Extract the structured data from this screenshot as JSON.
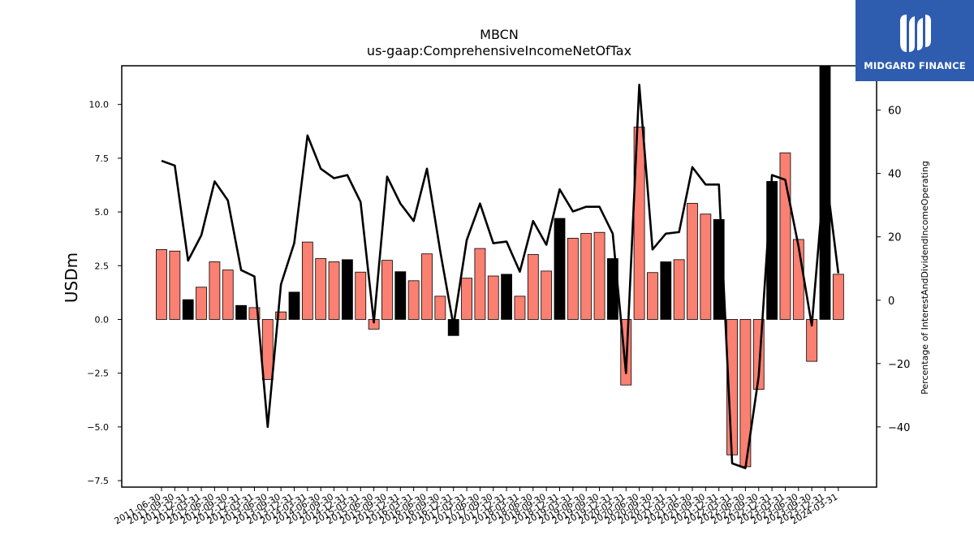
{
  "chart_data": {
    "type": "bar",
    "title": "MBCN",
    "subtitle": "us-gaap:ComprehensiveIncomeNetOfTax",
    "ylabel": "USDm",
    "ylabel_right": "Percentage of InterestAndDividendIncomeOperating",
    "ylim": [
      -7.8,
      11.8
    ],
    "ylim_right": [
      -59,
      74
    ],
    "yticks": [
      "−7.5",
      "−5.0",
      "−2.5",
      "0.0",
      "2.5",
      "5.0",
      "7.5",
      "10.0"
    ],
    "yticks_right": [
      "−40",
      "−20",
      "0",
      "20",
      "40",
      "60"
    ],
    "categories": [
      "2011-06-30",
      "2011-09-30",
      "2011-12-31",
      "2012-03-31",
      "2012-06-30",
      "2012-09-30",
      "2012-12-31",
      "2013-03-31",
      "2013-06-30",
      "2013-09-30",
      "2013-12-31",
      "2014-03-31",
      "2014-06-30",
      "2014-09-30",
      "2014-12-31",
      "2015-03-31",
      "2015-06-30",
      "2015-09-30",
      "2015-12-31",
      "2016-03-31",
      "2016-06-30",
      "2016-09-30",
      "2016-12-31",
      "2017-03-31",
      "2017-06-30",
      "2017-09-30",
      "2017-12-31",
      "2018-03-31",
      "2018-06-30",
      "2018-09-30",
      "2018-12-31",
      "2019-03-31",
      "2019-06-30",
      "2019-09-30",
      "2019-12-31",
      "2020-03-31",
      "2020-06-30",
      "2020-09-30",
      "2020-12-31",
      "2021-03-31",
      "2021-06-30",
      "2021-09-30",
      "2021-12-31",
      "2022-03-31",
      "2022-06-30",
      "2022-09-30",
      "2022-12-31",
      "2023-03-31",
      "2023-06-30",
      "2023-09-30",
      "2023-12-31",
      "2024-03-31"
    ],
    "series": [
      {
        "values": [
          3.25,
          3.18,
          0.92,
          1.5,
          2.68,
          2.3,
          0.65,
          0.55,
          -2.8,
          0.35,
          1.27,
          3.6,
          2.83,
          2.68,
          2.78,
          2.2,
          -0.45,
          2.75,
          2.22,
          1.8,
          3.05,
          1.08,
          -0.75,
          1.92,
          3.3,
          2.02,
          2.1,
          1.08,
          3.02,
          2.25,
          4.7,
          3.78,
          4.0,
          4.05,
          2.83,
          -3.05,
          8.95,
          2.18,
          2.68,
          2.78,
          5.4,
          4.9,
          4.65,
          -6.3,
          -6.85,
          -3.25,
          6.42,
          7.75,
          3.72,
          -1.95,
          12.1,
          2.1
        ],
        "colors": [
          "salmon",
          "salmon",
          "black",
          "salmon",
          "salmon",
          "salmon",
          "black",
          "salmon",
          "salmon",
          "salmon",
          "black",
          "salmon",
          "salmon",
          "salmon",
          "black",
          "salmon",
          "salmon",
          "salmon",
          "black",
          "salmon",
          "salmon",
          "salmon",
          "black",
          "salmon",
          "salmon",
          "salmon",
          "black",
          "salmon",
          "salmon",
          "salmon",
          "black",
          "salmon",
          "salmon",
          "salmon",
          "black",
          "salmon",
          "salmon",
          "salmon",
          "black",
          "salmon",
          "salmon",
          "salmon",
          "black",
          "salmon",
          "salmon",
          "salmon",
          "black",
          "salmon",
          "salmon",
          "salmon",
          "black",
          "salmon"
        ]
      },
      {
        "axis": "right",
        "type": "line",
        "values": [
          44,
          42.5,
          12.5,
          20.5,
          37.5,
          31.5,
          9.5,
          7.5,
          -40,
          5,
          18,
          52,
          41.5,
          38.5,
          39.5,
          31,
          -7,
          39,
          30.5,
          25,
          41.5,
          15.5,
          -8,
          19,
          30.5,
          18,
          18.5,
          9,
          25,
          17.5,
          35,
          28,
          29.5,
          29.5,
          21,
          -23,
          68,
          16,
          21,
          21.5,
          42,
          36.5,
          36.5,
          -51.5,
          -53,
          -24,
          39.5,
          38,
          17,
          -8,
          42,
          8.5
        ]
      }
    ],
    "colors": {
      "salmon": "#fa8072",
      "black": "#000000",
      "line": "#000000"
    },
    "grid": false,
    "legend": "none"
  },
  "logo": {
    "text": "MIDGARD FINANCE",
    "background": "#2e5cae"
  }
}
